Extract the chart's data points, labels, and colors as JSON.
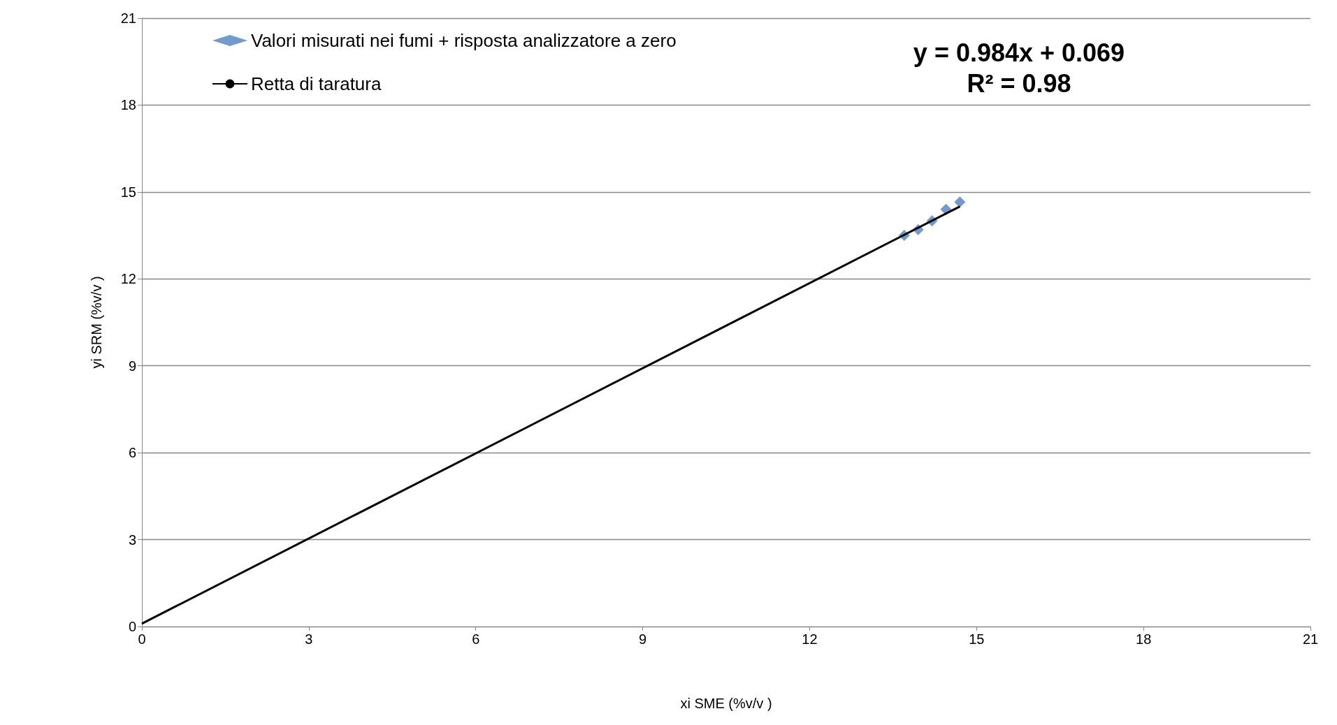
{
  "chart_data": {
    "type": "scatter",
    "xlabel": "xi SME (%v/v )",
    "ylabel": "yi SRM (%v/v )",
    "xlim": [
      0,
      21
    ],
    "ylim": [
      0,
      21
    ],
    "xticks": [
      0,
      3,
      6,
      9,
      12,
      15,
      18,
      21
    ],
    "yticks": [
      0,
      3,
      6,
      9,
      12,
      15,
      18,
      21
    ],
    "grid": "y",
    "legend": "top left",
    "series": [
      {
        "name": "Valori misurati nei fumi + risposta analizzatore a zero",
        "marker": "diamond",
        "color": "#4f81bd",
        "x": [
          13.7,
          13.95,
          14.2,
          14.45,
          14.7
        ],
        "values": [
          13.5,
          13.7,
          14.0,
          14.4,
          14.65
        ]
      },
      {
        "name": "Retta di taratura",
        "type": "line",
        "marker": "none",
        "line_style": "solid",
        "color": "#000000",
        "x": [
          0,
          14.7
        ],
        "values": [
          0.1,
          14.5
        ]
      }
    ],
    "annotations": [
      "y = 0.984x + 0.069\nR² = 0.98"
    ]
  }
}
